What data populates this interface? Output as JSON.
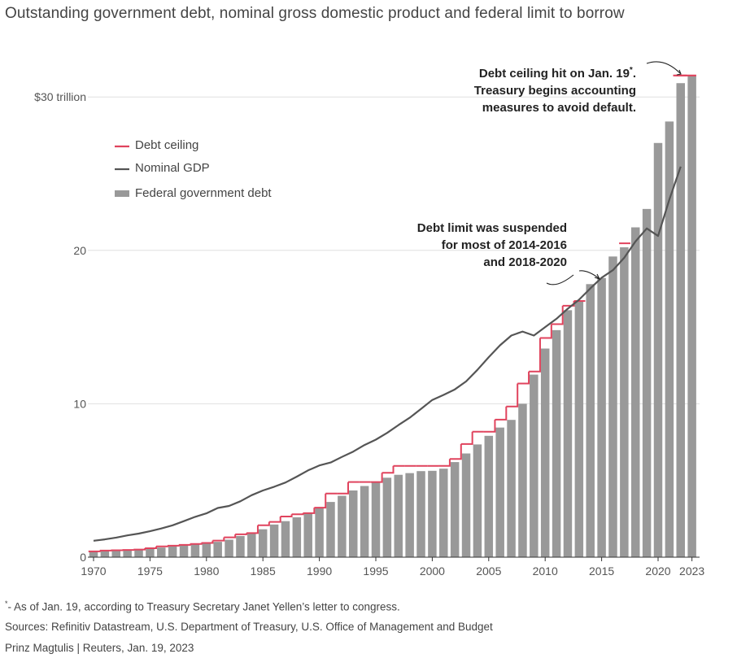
{
  "title": "Outstanding government debt, nominal gross domestic product and federal limit to borrow",
  "colors": {
    "debt_bar": "#999999",
    "gdp_line": "#555555",
    "ceiling": "#e0435d",
    "grid": "#e0e0e0",
    "axis": "#333333"
  },
  "chart_data": {
    "type": "bar",
    "title": "Outstanding government debt, nominal gross domestic product and federal limit to borrow",
    "xlabel": "",
    "ylabel": "",
    "ylim": [
      0,
      32
    ],
    "xlim": [
      1969.5,
      2023.5
    ],
    "y_ticks": [
      0,
      10,
      20,
      30
    ],
    "y_tick_labels": [
      "0",
      "10",
      "20",
      "$30 trillion"
    ],
    "x_ticks": [
      1970,
      1975,
      1980,
      1985,
      1990,
      1995,
      2000,
      2005,
      2010,
      2015,
      2020,
      2023
    ],
    "x_tick_labels": [
      "1970",
      "1975",
      "1980",
      "1985",
      "1990",
      "1995",
      "2000",
      "2005",
      "2010",
      "2015",
      "2020",
      "2023"
    ],
    "legend": [
      "Debt ceiling",
      "Nominal GDP",
      "Federal government debt"
    ],
    "legend_position": "top-left",
    "series": [
      {
        "name": "Federal government debt",
        "type": "bar",
        "x": [
          1970,
          1971,
          1972,
          1973,
          1974,
          1975,
          1976,
          1977,
          1978,
          1979,
          1980,
          1981,
          1982,
          1983,
          1984,
          1985,
          1986,
          1987,
          1988,
          1989,
          1990,
          1991,
          1992,
          1993,
          1994,
          1995,
          1996,
          1997,
          1998,
          1999,
          2000,
          2001,
          2002,
          2003,
          2004,
          2005,
          2006,
          2007,
          2008,
          2009,
          2010,
          2011,
          2012,
          2013,
          2014,
          2015,
          2016,
          2017,
          2018,
          2019,
          2020,
          2021,
          2022,
          2023
        ],
        "values": [
          0.38,
          0.41,
          0.44,
          0.47,
          0.48,
          0.54,
          0.63,
          0.71,
          0.78,
          0.83,
          0.91,
          1.0,
          1.14,
          1.38,
          1.57,
          1.82,
          2.13,
          2.35,
          2.6,
          2.87,
          3.21,
          3.6,
          4.0,
          4.35,
          4.64,
          4.92,
          5.18,
          5.37,
          5.48,
          5.61,
          5.63,
          5.77,
          6.2,
          6.76,
          7.35,
          7.91,
          8.45,
          8.95,
          10.0,
          11.9,
          13.6,
          14.8,
          16.1,
          16.7,
          17.8,
          18.2,
          19.6,
          20.2,
          21.5,
          22.7,
          27.0,
          28.4,
          30.9,
          31.4
        ]
      },
      {
        "name": "Nominal GDP",
        "type": "line",
        "x": [
          1970,
          1971,
          1972,
          1973,
          1974,
          1975,
          1976,
          1977,
          1978,
          1979,
          1980,
          1981,
          1982,
          1983,
          1984,
          1985,
          1986,
          1987,
          1988,
          1989,
          1990,
          1991,
          1992,
          1993,
          1994,
          1995,
          1996,
          1997,
          1998,
          1999,
          2000,
          2001,
          2002,
          2003,
          2004,
          2005,
          2006,
          2007,
          2008,
          2009,
          2010,
          2011,
          2012,
          2013,
          2014,
          2015,
          2016,
          2017,
          2018,
          2019,
          2020,
          2021,
          2022
        ],
        "values": [
          1.07,
          1.16,
          1.28,
          1.42,
          1.54,
          1.69,
          1.87,
          2.08,
          2.35,
          2.63,
          2.86,
          3.21,
          3.34,
          3.64,
          4.04,
          4.35,
          4.59,
          4.87,
          5.25,
          5.66,
          5.98,
          6.17,
          6.54,
          6.88,
          7.31,
          7.66,
          8.1,
          8.61,
          9.09,
          9.66,
          10.25,
          10.58,
          10.94,
          11.46,
          12.21,
          13.04,
          13.81,
          14.45,
          14.71,
          14.45,
          15.0,
          15.54,
          16.2,
          16.78,
          17.52,
          18.22,
          18.71,
          19.52,
          20.58,
          21.43,
          20.94,
          23.32,
          25.46
        ]
      },
      {
        "name": "Debt ceiling",
        "type": "step",
        "x": [
          1970,
          1971,
          1972,
          1973,
          1974,
          1975,
          1976,
          1977,
          1978,
          1979,
          1980,
          1981,
          1982,
          1983,
          1984,
          1985,
          1986,
          1987,
          1988,
          1989,
          1990,
          1991,
          1992,
          1993,
          1994,
          1995,
          1996,
          1997,
          1998,
          1999,
          2000,
          2001,
          2002,
          2003,
          2004,
          2005,
          2006,
          2007,
          2008,
          2009,
          2010,
          2011,
          2012,
          2013,
          2017,
          2022,
          2023
        ],
        "values": [
          0.38,
          0.43,
          0.45,
          0.47,
          0.5,
          0.58,
          0.7,
          0.75,
          0.8,
          0.86,
          0.93,
          1.08,
          1.29,
          1.49,
          1.57,
          2.08,
          2.3,
          2.65,
          2.8,
          2.87,
          3.23,
          4.15,
          4.15,
          4.9,
          4.9,
          4.9,
          5.5,
          5.95,
          5.95,
          5.95,
          5.95,
          5.95,
          6.4,
          7.38,
          8.18,
          8.18,
          8.97,
          9.82,
          11.32,
          12.1,
          14.29,
          15.19,
          16.39,
          16.7,
          20.46,
          31.4,
          31.4
        ]
      }
    ],
    "annotations": [
      "Debt ceiling hit on Jan. 19*. Treasury begins accounting measures to avoid default.",
      "Debt limit was suspended for most of 2014-2016 and 2018-2020"
    ]
  },
  "legend": {
    "ceiling": "Debt ceiling",
    "gdp": "Nominal GDP",
    "debt": "Federal government debt"
  },
  "annotations": {
    "ceiling_hit_line1_pre": "Debt ceiling hit on Jan. 19",
    "ceiling_hit_star": "*",
    "ceiling_hit_line1_post": ".",
    "ceiling_hit_line2": "Treasury begins accounting",
    "ceiling_hit_line3": "measures to avoid default.",
    "suspended_line1": "Debt limit was suspended",
    "suspended_line2": "for most of 2014-2016",
    "suspended_line3": "and 2018-2020"
  },
  "footer": {
    "note_star": "*",
    "note": "- As of Jan. 19, according to Treasury Secretary Janet Yellen’s letter to congress.",
    "sources": "Sources: Refinitiv Datastream, U.S. Department of Treasury, U.S. Office of Management and Budget",
    "byline": "Prinz Magtulis  |  Reuters, Jan. 19, 2023"
  }
}
